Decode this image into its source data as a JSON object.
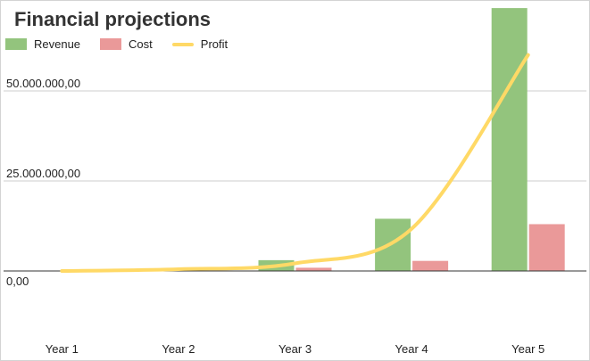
{
  "chart_data": {
    "type": "bar",
    "title": "Financial projections",
    "categories": [
      "Year 1",
      "Year 2",
      "Year 3",
      "Year 4",
      "Year 5"
    ],
    "series": [
      {
        "name": "Revenue",
        "type": "bar",
        "color": "#93c47d",
        "values": [
          0,
          0,
          3000000,
          14500000,
          73000000
        ]
      },
      {
        "name": "Cost",
        "type": "bar",
        "color": "#ea9999",
        "values": [
          0,
          0,
          900000,
          2800000,
          13000000
        ]
      },
      {
        "name": "Profit",
        "type": "line",
        "color": "#ffd966",
        "values": [
          0,
          500000,
          2100000,
          11700000,
          60000000
        ]
      }
    ],
    "yticks": [
      {
        "value": 0,
        "label": "0,00"
      },
      {
        "value": 25000000,
        "label": "25.000.000,00"
      },
      {
        "value": 50000000,
        "label": "50.000.000,00"
      }
    ],
    "ylim": [
      -25000000,
      75000000
    ],
    "grid": true,
    "legend_position": "top-left"
  }
}
